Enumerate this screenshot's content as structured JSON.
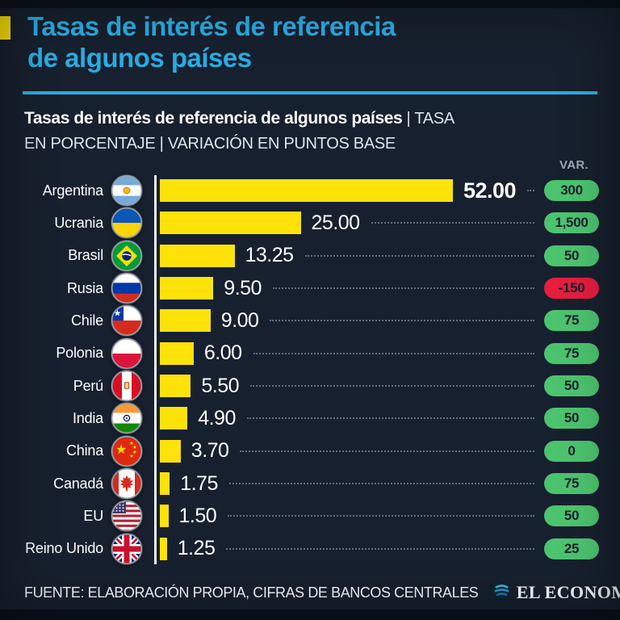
{
  "header": {
    "title_line1": "Tasas de interés de referencia",
    "title_line2": "de algunos países"
  },
  "subtitle": {
    "bold": "Tasas de interés de referencia de algunos países",
    "rest_line1": " | TASA",
    "line2": "EN PORCENTAJE | VARIACIÓN EN PUNTOS BASE"
  },
  "var_header": "VAR.",
  "colors": {
    "background": "#17202E",
    "frame": "#0C131B",
    "accent_cyan": "#29ACE3",
    "accent_yellow": "#FFE20A",
    "bar": "#FFE20A",
    "positive_pill": "#4CC46F",
    "negative_pill": "#E61E3E",
    "pill_text": "#14202E"
  },
  "chart_data": {
    "type": "bar",
    "orientation": "horizontal",
    "title": "Tasas de interés de referencia de algunos países | TASA EN PORCENTAJE | VARIACIÓN EN PUNTOS BASE",
    "categories": [
      "Argentina",
      "Ucrania",
      "Brasil",
      "Rusia",
      "Chile",
      "Polonia",
      "Perú",
      "India",
      "China",
      "Canadá",
      "EU",
      "Reino Unido"
    ],
    "series": [
      {
        "name": "Tasa (%)",
        "values": [
          52.0,
          25.0,
          13.25,
          9.5,
          9.0,
          6.0,
          5.5,
          4.9,
          3.7,
          1.75,
          1.5,
          1.25
        ]
      },
      {
        "name": "Variación (puntos base)",
        "values": [
          300,
          1500,
          50,
          -150,
          75,
          75,
          50,
          50,
          0,
          75,
          50,
          25
        ]
      }
    ],
    "xlim": [
      0,
      52
    ],
    "legend_position": "none",
    "grid": false
  },
  "rows": [
    {
      "country": "Argentina",
      "flag": "flag-argentina",
      "value": "52.00",
      "var": "300",
      "negative": false,
      "emphasis": true
    },
    {
      "country": "Ucrania",
      "flag": "flag-ukraine",
      "value": "25.00",
      "var": "1,500",
      "negative": false
    },
    {
      "country": "Brasil",
      "flag": "flag-brazil",
      "value": "13.25",
      "var": "50",
      "negative": false
    },
    {
      "country": "Rusia",
      "flag": "flag-russia",
      "value": "9.50",
      "var": "-150",
      "negative": true
    },
    {
      "country": "Chile",
      "flag": "flag-chile",
      "value": "9.00",
      "var": "75",
      "negative": false
    },
    {
      "country": "Polonia",
      "flag": "flag-poland",
      "value": "6.00",
      "var": "75",
      "negative": false
    },
    {
      "country": "Perú",
      "flag": "flag-peru",
      "value": "5.50",
      "var": "50",
      "negative": false
    },
    {
      "country": "India",
      "flag": "flag-india",
      "value": "4.90",
      "var": "50",
      "negative": false
    },
    {
      "country": "China",
      "flag": "flag-china",
      "value": "3.70",
      "var": "0",
      "negative": false
    },
    {
      "country": "Canadá",
      "flag": "flag-canada",
      "value": "1.75",
      "var": "75",
      "negative": false
    },
    {
      "country": "EU",
      "flag": "flag-usa",
      "value": "1.50",
      "var": "50",
      "negative": false
    },
    {
      "country": "Reino Unido",
      "flag": "flag-uk",
      "value": "1.25",
      "var": "25",
      "negative": false
    }
  ],
  "footer": {
    "source": "FUENTE: ELABORACIÓN PROPIA, CIFRAS DE BANCOS CENTRALES",
    "brand": "EL ECONOMISTA",
    "brand_icon": "el-economista-globe-icon"
  }
}
